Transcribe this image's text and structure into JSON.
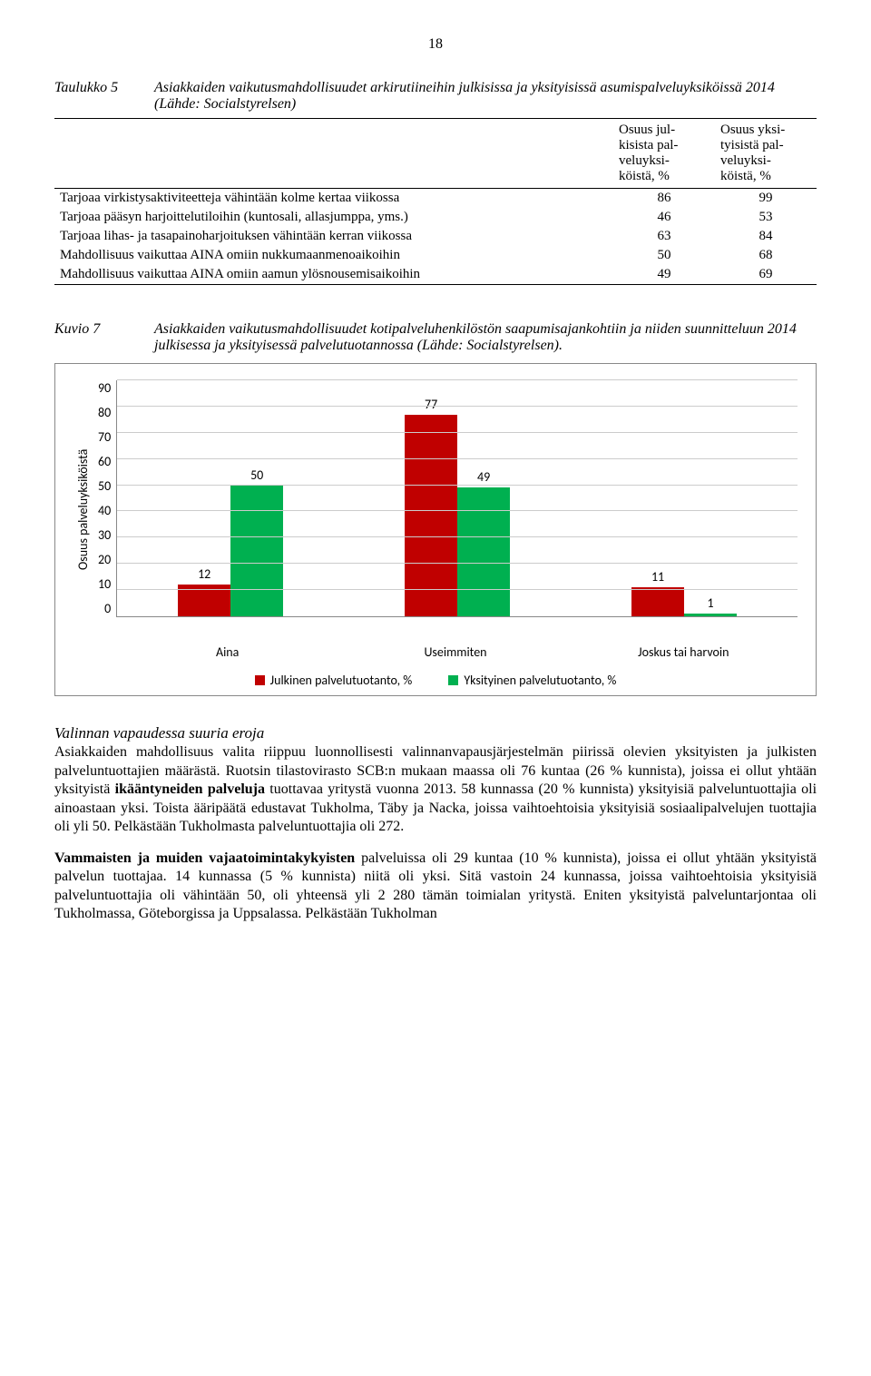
{
  "page_number": "18",
  "table5": {
    "label": "Taulukko 5",
    "caption": "Asiakkaiden vaikutusmahdollisuudet arkirutiineihin julkisissa ja yksityisissä asumispalveluyksiköissä 2014 (Lähde: Socialstyrelsen)",
    "col1": "Osuus jul-\nkisista pal-\nveluyksi-\nköistä, %",
    "col2": "Osuus yksi-\ntyisistä pal-\nveluyksi-\nköistä, %",
    "rows": [
      {
        "label": "Tarjoaa virkistysaktiviteetteja vähintään kolme kertaa viikossa",
        "a": "86",
        "b": "99"
      },
      {
        "label": "Tarjoaa pääsyn harjoittelutiloihin (kuntosali, allasjumppa, yms.)",
        "a": "46",
        "b": "53"
      },
      {
        "label": "Tarjoaa lihas- ja tasapainoharjoituksen vähintään kerran viikossa",
        "a": "63",
        "b": "84"
      },
      {
        "label": "Mahdollisuus vaikuttaa AINA omiin nukkumaanmenoaikoihin",
        "a": "50",
        "b": "68"
      },
      {
        "label": "Mahdollisuus vaikuttaa AINA omiin aamun ylösnousemisaikoihin",
        "a": "49",
        "b": "69"
      }
    ]
  },
  "kuvio7": {
    "label": "Kuvio 7",
    "caption": "Asiakkaiden vaikutusmahdollisuudet kotipalveluhenkilöstön saapumisajankohtiin ja niiden suunnitteluun 2014 julkisessa ja yksityisessä palvelutuotannossa (Lähde: Socialstyrelsen).",
    "ylabel": "Osuus palveluyksiköistä",
    "ymax": 90,
    "ystep": 10,
    "yticks": [
      "90",
      "80",
      "70",
      "60",
      "50",
      "40",
      "30",
      "20",
      "10",
      "0"
    ],
    "categories": [
      "Aina",
      "Useimmiten",
      "Joskus tai harvoin"
    ],
    "series": [
      {
        "name": "Julkinen palvelutuotanto, %",
        "color": "#c00000",
        "values": [
          12,
          77,
          11
        ]
      },
      {
        "name": "Yksityinen palvelutuotanto, %",
        "color": "#00b050",
        "values": [
          50,
          49,
          1
        ]
      }
    ],
    "grid_color": "#cccccc",
    "background": "#ffffff"
  },
  "section": {
    "heading": "Valinnan vapaudessa suuria eroja",
    "p1": "Asiakkaiden mahdollisuus valita riippuu luonnollisesti valinnanvapausjärjestelmän piirissä olevien yksityisten ja julkisten palveluntuottajien määrästä. Ruotsin tilastovirasto SCB:n mukaan maassa oli 76 kuntaa (26 % kunnista), joissa ei ollut yhtään yksityistä ",
    "p1_bold": "ikääntyneiden palveluja",
    "p1_cont": " tuottavaa yritystä vuonna 2013. 58 kunnassa (20 % kunnista) yksityisiä palveluntuottajia oli ainoastaan yksi. Toista ääripäätä edustavat Tukholma, Täby ja Nacka, joissa vaihtoehtoisia yksityisiä sosiaalipalvelujen tuottajia oli yli 50. Pelkästään Tukholmasta palveluntuottajia oli 272.",
    "p2_bold": "Vammaisten ja muiden vajaatoimintakykyisten",
    "p2": " palveluissa oli 29 kuntaa (10 % kunnista), joissa ei ollut yhtään yksityistä palvelun tuottajaa. 14 kunnassa (5 % kunnista) niitä oli yksi. Sitä vastoin 24 kunnassa, joissa vaihtoehtoisia yksityisiä palveluntuottajia oli vähintään 50, oli yhteensä yli 2 280 tämän toimialan yritystä. Eniten yksityistä palveluntarjontaa oli Tukholmassa, Göteborgissa ja Uppsalassa. Pelkästään Tukholman"
  }
}
